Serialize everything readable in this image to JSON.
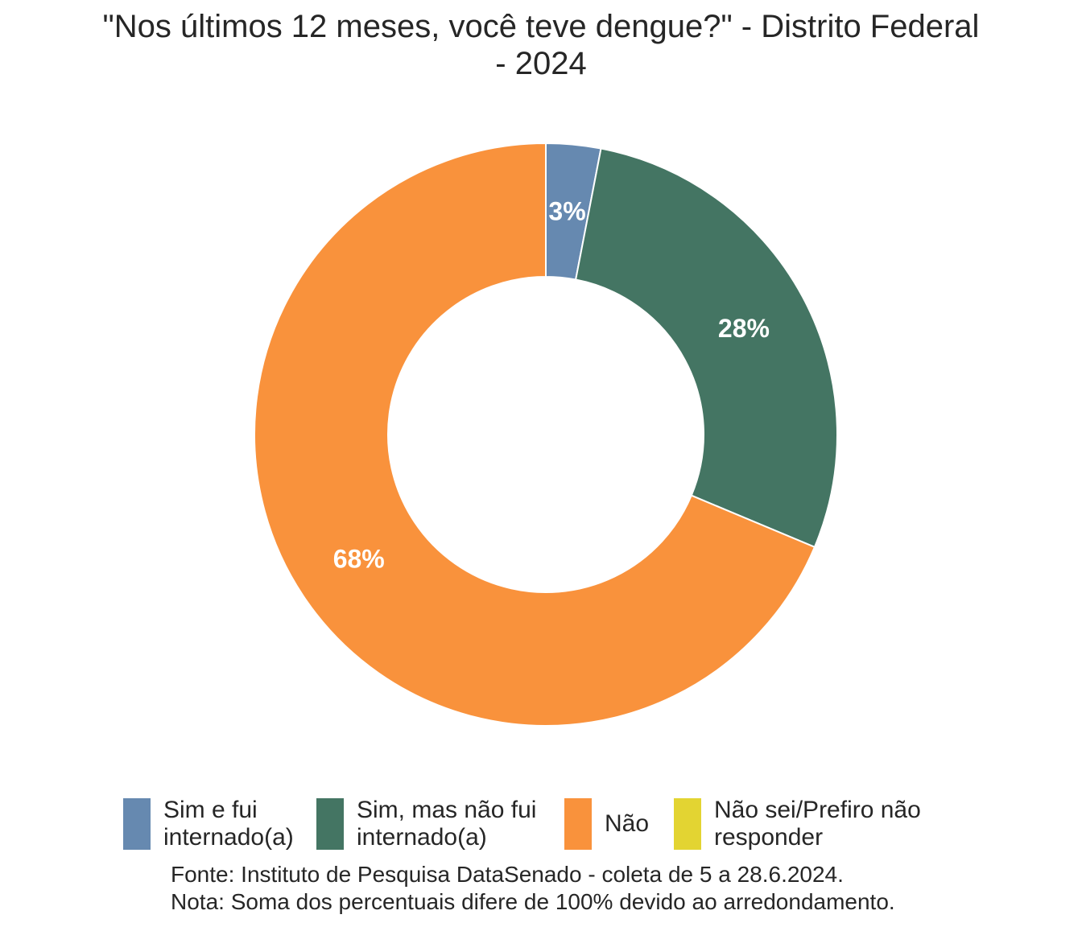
{
  "chart_data": {
    "type": "pie",
    "subtype": "donut",
    "title_lines": [
      "\"Nos últimos 12 meses, você teve dengue?\" - Distrito Federal",
      "- 2024"
    ],
    "categories": [
      "Sim e fui internado(a)",
      "Sim, mas não fui internado(a)",
      "Não",
      "Não sei/Prefiro não responder"
    ],
    "values": [
      3,
      28,
      68,
      0
    ],
    "data_labels": [
      "3%",
      "28%",
      "68%",
      ""
    ],
    "colors": [
      "#6689B0",
      "#447563",
      "#F9923C",
      "#E3D432"
    ],
    "legend": {
      "position": "bottom",
      "items": [
        {
          "label": "Sim e fui\ninternado(a)",
          "color": "#6689B0"
        },
        {
          "label": "Sim, mas não fui\ninternado(a)",
          "color": "#447563"
        },
        {
          "label": "Não",
          "color": "#F9923C"
        },
        {
          "label": "Não sei/Prefiro não\nresponder",
          "color": "#E3D432"
        }
      ]
    }
  },
  "caption": {
    "source": "Fonte: Instituto de Pesquisa DataSenado - coleta de 5 a 28.6.2024.",
    "note": "Nota: Soma dos percentuais difere de 100% devido ao arredondamento."
  }
}
